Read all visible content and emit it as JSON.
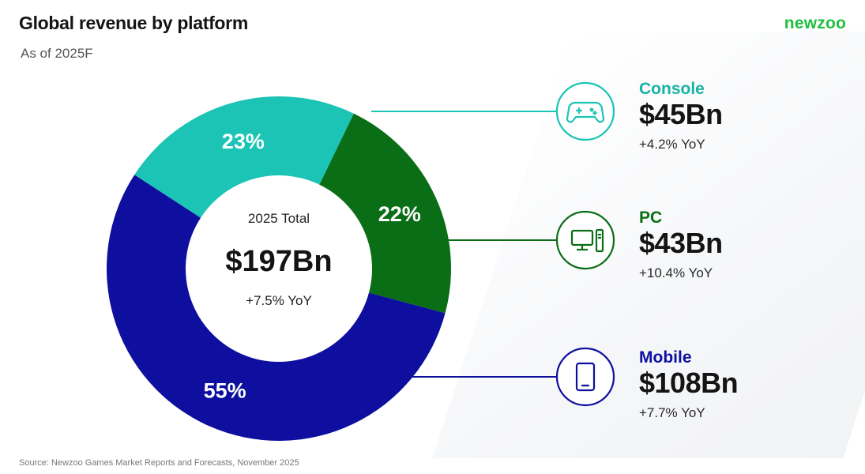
{
  "header": {
    "title": "Global revenue by platform",
    "subtitle": "As of 2025F",
    "brand": "newzoo"
  },
  "footer": {
    "source": "Source: Newzoo Games Market Reports and Forecasts, November 2025"
  },
  "center": {
    "label": "2025 Total",
    "value": "$197Bn",
    "yoy": "+7.5% YoY"
  },
  "chart_data": {
    "type": "pie",
    "title": "Global revenue by platform",
    "subtitle": "As of 2025F",
    "slices": [
      {
        "name": "Console",
        "value": 23,
        "label": "23%",
        "revenue": "$45Bn",
        "yoy": "+4.2% YoY",
        "color": "#1cc4b6",
        "name_color": "#17b3a5",
        "icon": "gamepad-icon"
      },
      {
        "name": "PC",
        "value": 22,
        "label": "22%",
        "revenue": "$43Bn",
        "yoy": "+10.4% YoY",
        "color": "#0a6e17",
        "name_color": "#0a6e17",
        "icon": "desktop-computer-icon"
      },
      {
        "name": "Mobile",
        "value": 55,
        "label": "55%",
        "revenue": "$108Bn",
        "yoy": "+7.7% YoY",
        "color": "#0e0f9e",
        "name_color": "#0e0f9e",
        "icon": "smartphone-icon"
      }
    ],
    "total": "$197Bn",
    "total_label": "2025 Total",
    "total_yoy": "+7.5% YoY"
  }
}
